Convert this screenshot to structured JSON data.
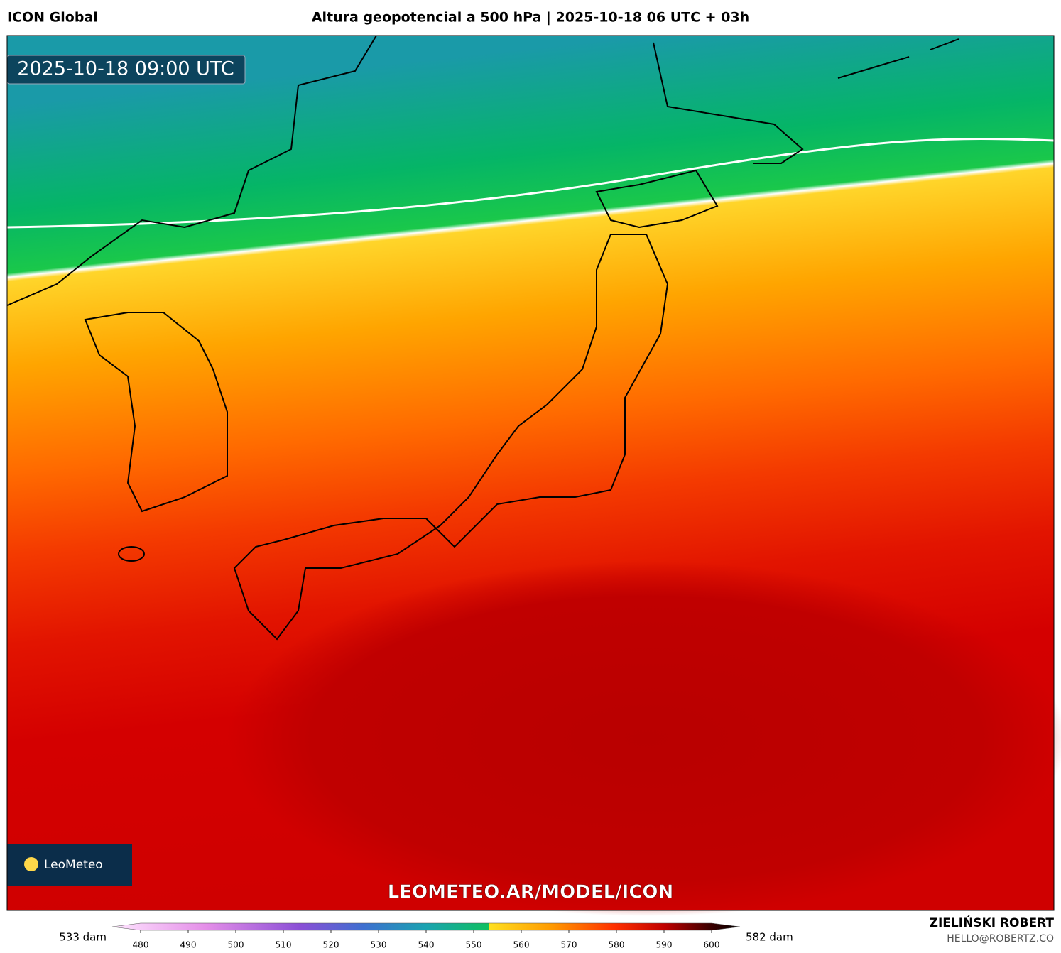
{
  "header": {
    "model": "ICON Global",
    "title": "Altura geopotencial a 500 hPa | 2025-10-18 06 UTC + 03h"
  },
  "map": {
    "timestamp": "2025-10-18 09:00 UTC",
    "watermark": "LEOMETEO.AR/MODEL/ICON",
    "logo": "LeoMeteo"
  },
  "colorbar": {
    "min_label": "533 dam",
    "max_label": "582 dam",
    "ticks": [
      480,
      490,
      500,
      510,
      520,
      530,
      540,
      550,
      560,
      570,
      580,
      590,
      600
    ]
  },
  "footer": {
    "author": "ZIELIŃSKI ROBERT",
    "email": "HELLO@ROBERTZ.CO"
  }
}
